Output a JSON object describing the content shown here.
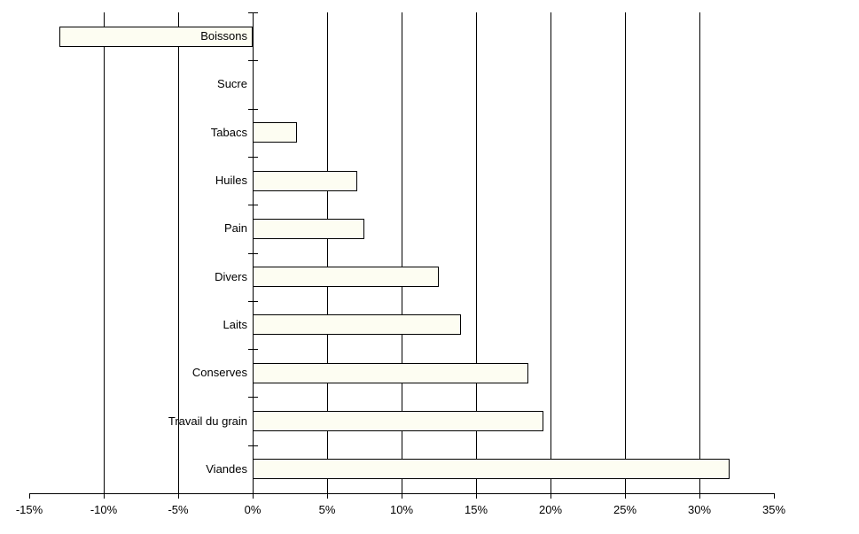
{
  "chart_data": {
    "type": "bar",
    "orientation": "horizontal",
    "title": "",
    "xlabel": "",
    "ylabel": "",
    "categories": [
      "Boissons",
      "Sucre",
      "Tabacs",
      "Huiles",
      "Pain",
      "Divers",
      "Laits",
      "Conserves",
      "Travail du grain",
      "Viandes"
    ],
    "values": [
      -13,
      0,
      3,
      7,
      7.5,
      12.5,
      14,
      18.5,
      19.5,
      32
    ],
    "value_unit": "%",
    "xlim": [
      -15,
      35
    ],
    "x_tick_step": 5,
    "x_tick_labels": [
      "-15%",
      "-10%",
      "-5%",
      "0%",
      "5%",
      "10%",
      "15%",
      "20%",
      "25%",
      "30%",
      "35%"
    ],
    "gridline_values": [
      -10,
      -5,
      5,
      10,
      15,
      20,
      25,
      30
    ],
    "grid": true,
    "legend": false,
    "colors": {
      "bar_fill": "#FDFDF2",
      "bar_border": "#000000",
      "axis": "#000000",
      "grid": "#000000",
      "text": "#000000",
      "background": "#FFFFFF"
    }
  }
}
